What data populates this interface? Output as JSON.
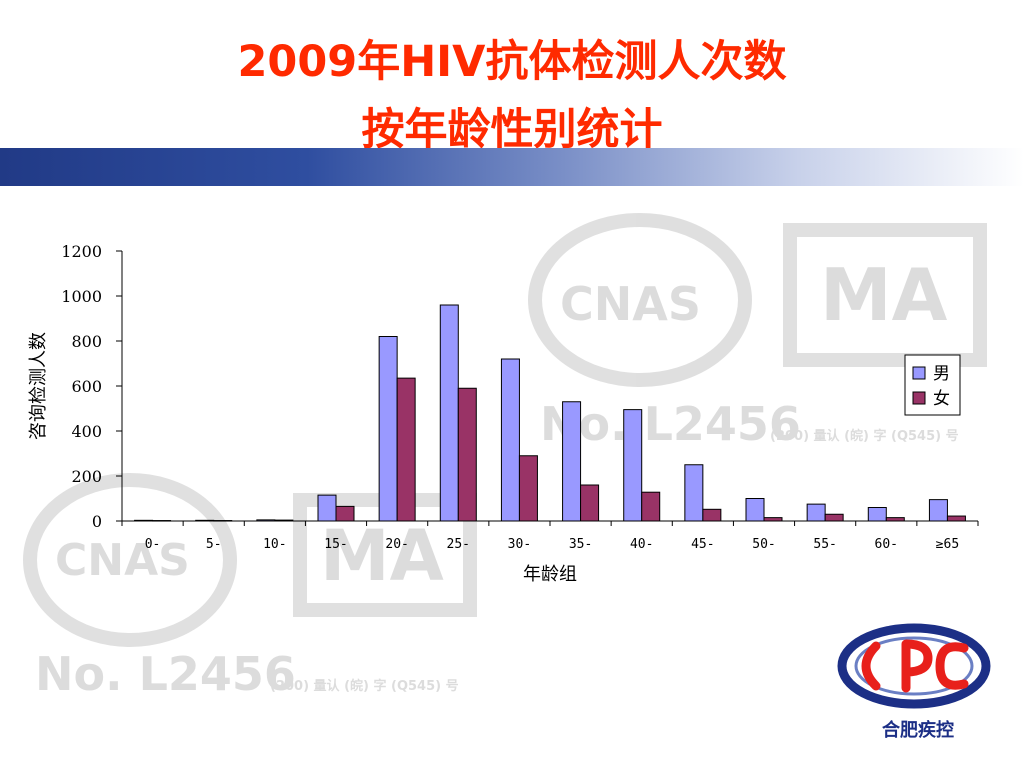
{
  "slide": {
    "title_line1": "2009年HIV抗体检测人次数",
    "title_line2": "按年龄性别统计",
    "logo_text": "合肥疾控",
    "accent_color": "#ff2a00",
    "band_color": "#213a86"
  },
  "watermark": {
    "cnas": "CNAS",
    "ma": "MA",
    "number": "No. L2456",
    "small_text": "(200) 量认 (皖) 字 (Q545) 号"
  },
  "chart_data": {
    "type": "bar",
    "title": "",
    "xlabel": "年龄组",
    "ylabel": "咨询检测人数",
    "ylim": [
      0,
      1200
    ],
    "yticks": [
      0,
      200,
      400,
      600,
      800,
      1000,
      1200
    ],
    "categories": [
      "0-",
      "5-",
      "10-",
      "15-",
      "20-",
      "25-",
      "30-",
      "35-",
      "40-",
      "45-",
      "50-",
      "55-",
      "60-",
      "≥65"
    ],
    "series": [
      {
        "name": "男",
        "color": "#9999ff",
        "values": [
          3,
          3,
          5,
          115,
          820,
          960,
          720,
          530,
          495,
          250,
          100,
          75,
          60,
          95
        ]
      },
      {
        "name": "女",
        "color": "#993366",
        "values": [
          2,
          2,
          4,
          65,
          635,
          590,
          290,
          160,
          128,
          52,
          15,
          30,
          15,
          22
        ]
      }
    ],
    "legend_position": "right",
    "grid": false
  }
}
